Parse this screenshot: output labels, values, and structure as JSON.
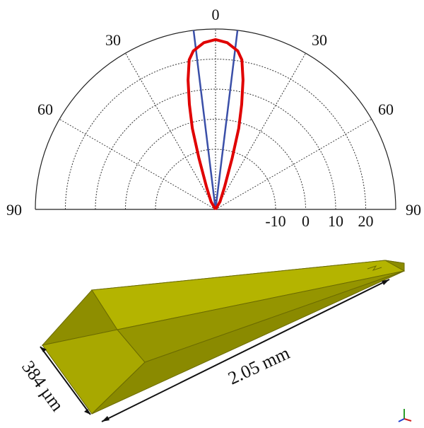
{
  "polar_plot": {
    "angle_labels_left": [
      "0",
      "30",
      "60",
      "90"
    ],
    "angle_labels_right": [
      "30",
      "60",
      "90"
    ],
    "radial_labels": [
      "-10",
      "0",
      "10",
      "20"
    ],
    "colors": {
      "pattern": "#e00000",
      "beam_edges": "#3a4fa8",
      "grid": "#333333"
    }
  },
  "chart_data": {
    "type": "polar",
    "angle_ticks_deg": [
      -90,
      -60,
      -30,
      0,
      30,
      60,
      90
    ],
    "radial_ticks": [
      -10,
      0,
      10,
      20
    ],
    "radial_range": [
      -30,
      30
    ],
    "grid": true,
    "series": [
      {
        "points": [
          [
            0,
            26.5
          ],
          [
            4,
            25.6
          ],
          [
            8,
            23.2
          ],
          [
            10,
            20.5
          ],
          [
            12,
            14
          ],
          [
            14,
            6
          ],
          [
            16,
            -2
          ],
          [
            18,
            -12
          ],
          [
            22,
            -22
          ],
          [
            30,
            -27
          ],
          [
            90,
            -30
          ]
        ],
        "symmetric": true
      }
    ],
    "reference_lines_deg": [
      -7,
      7
    ]
  },
  "horn": {
    "width_label": "384 µm",
    "length_label": "2.05 mm",
    "color": "#a8a800"
  },
  "axis_triad": {
    "icon": "xyz-axis-icon"
  }
}
